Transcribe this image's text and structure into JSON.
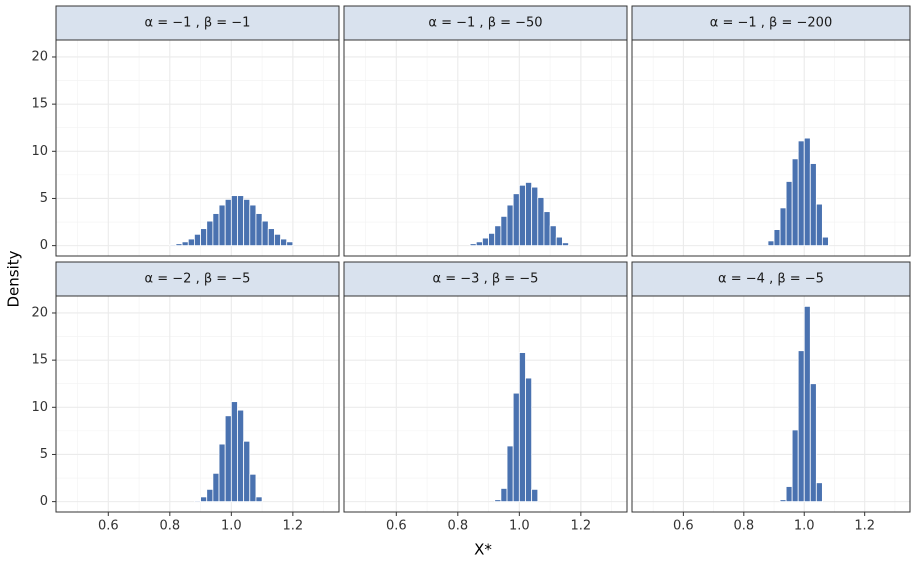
{
  "axis_labels": {
    "x": "X*",
    "y": "Density"
  },
  "chart_data": [
    {
      "type": "histogram",
      "title": "α = −1 ,  β = −1",
      "color": "#4a72b0",
      "grid": true,
      "bins": [
        0.8,
        0.82,
        0.84,
        0.86,
        0.88,
        0.9,
        0.92,
        0.94,
        0.96,
        0.98,
        1.0,
        1.02,
        1.04,
        1.06,
        1.08,
        1.1,
        1.12,
        1.14,
        1.16,
        1.18,
        1.2
      ],
      "values": [
        0.1,
        0.2,
        0.4,
        0.7,
        1.2,
        1.8,
        2.6,
        3.4,
        4.3,
        4.9,
        5.3,
        5.3,
        4.9,
        4.3,
        3.4,
        2.6,
        1.8,
        1.2,
        0.7,
        0.4
      ],
      "xlim": [
        0.43,
        1.35
      ],
      "ylim": [
        -1.1,
        21.8
      ],
      "xticks": [
        0.6,
        0.8,
        {
          "value": 1,
          "label": "1.0"
        },
        1.2
      ],
      "yticks": [
        0,
        5,
        10,
        15,
        20
      ]
    },
    {
      "type": "histogram",
      "title": "α = −1 ,  β = −50",
      "color": "#4a72b0",
      "grid": true,
      "bins": [
        0.84,
        0.86,
        0.88,
        0.9,
        0.92,
        0.94,
        0.96,
        0.98,
        1.0,
        1.02,
        1.04,
        1.06,
        1.08,
        1.1,
        1.12,
        1.14,
        1.16
      ],
      "values": [
        0.2,
        0.4,
        0.8,
        1.3,
        2.1,
        3.1,
        4.3,
        5.5,
        6.4,
        6.7,
        6.2,
        5.1,
        3.6,
        2.1,
        0.9,
        0.3
      ],
      "xlim": [
        0.43,
        1.35
      ],
      "ylim": [
        -1.1,
        21.8
      ],
      "xticks": [
        0.6,
        0.8,
        {
          "value": 1,
          "label": "1.0"
        },
        1.2
      ],
      "yticks": [
        0,
        5,
        10,
        15,
        20
      ]
    },
    {
      "type": "histogram",
      "title": "α = −1 ,  β = −200",
      "color": "#4a72b0",
      "grid": true,
      "bins": [
        0.88,
        0.9,
        0.92,
        0.94,
        0.96,
        0.98,
        1.0,
        1.02,
        1.04,
        1.06,
        1.08
      ],
      "values": [
        0.5,
        1.7,
        4.0,
        6.8,
        9.2,
        11.1,
        11.4,
        8.7,
        4.4,
        0.9
      ],
      "xlim": [
        0.43,
        1.35
      ],
      "ylim": [
        -1.1,
        21.8
      ],
      "xticks": [
        0.6,
        0.8,
        {
          "value": 1,
          "label": "1.0"
        },
        1.2
      ],
      "yticks": [
        0,
        5,
        10,
        15,
        20
      ]
    },
    {
      "type": "histogram",
      "title": "α = −2 ,  β = −5",
      "color": "#4a72b0",
      "grid": true,
      "bins": [
        0.88,
        0.9,
        0.92,
        0.94,
        0.96,
        0.98,
        1.0,
        1.02,
        1.04,
        1.06,
        1.08,
        1.1
      ],
      "values": [
        0.1,
        0.5,
        1.3,
        3.0,
        6.1,
        9.1,
        10.6,
        9.7,
        6.4,
        2.9,
        0.5
      ],
      "xlim": [
        0.43,
        1.35
      ],
      "ylim": [
        -1.1,
        21.8
      ],
      "xticks": [
        0.6,
        0.8,
        {
          "value": 1,
          "label": "1.0"
        },
        1.2
      ],
      "yticks": [
        0,
        5,
        10,
        15,
        20
      ]
    },
    {
      "type": "histogram",
      "title": "α = −3 ,  β = −5",
      "color": "#4a72b0",
      "grid": true,
      "bins": [
        0.92,
        0.94,
        0.96,
        0.98,
        1.0,
        1.02,
        1.04,
        1.06
      ],
      "values": [
        0.2,
        1.4,
        5.9,
        11.5,
        15.8,
        13.1,
        1.3
      ],
      "xlim": [
        0.43,
        1.35
      ],
      "ylim": [
        -1.1,
        21.8
      ],
      "xticks": [
        0.6,
        0.8,
        {
          "value": 1,
          "label": "1.0"
        },
        1.2
      ],
      "yticks": [
        0,
        5,
        10,
        15,
        20
      ]
    },
    {
      "type": "histogram",
      "title": "α = −4 ,  β = −5",
      "color": "#4a72b0",
      "grid": true,
      "bins": [
        0.92,
        0.94,
        0.96,
        0.98,
        1.0,
        1.02,
        1.04,
        1.06
      ],
      "values": [
        0.2,
        1.6,
        7.6,
        16.0,
        20.7,
        12.5,
        2.0
      ],
      "xlim": [
        0.43,
        1.35
      ],
      "ylim": [
        -1.1,
        21.8
      ],
      "xticks": [
        0.6,
        0.8,
        {
          "value": 1,
          "label": "1.0"
        },
        1.2
      ],
      "yticks": [
        0,
        5,
        10,
        15,
        20
      ]
    }
  ]
}
